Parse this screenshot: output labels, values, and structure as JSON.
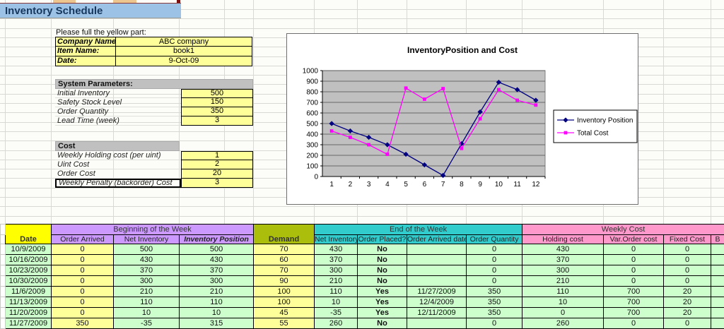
{
  "title": "Inventory Schedule",
  "instructions": "Please full the yellow part:",
  "form": {
    "rows": [
      {
        "label": "Company Name",
        "value": "ABC company"
      },
      {
        "label": "Item Name:",
        "value": "book1"
      },
      {
        "label": "Date:",
        "value": "9-Oct-09"
      }
    ]
  },
  "system_parameters": {
    "header": "System Parameters:",
    "rows": [
      {
        "label": "Initial Inventory",
        "value": "500"
      },
      {
        "label": "Safety Stock Level",
        "value": "150"
      },
      {
        "label": "Order Quantity",
        "value": "350"
      },
      {
        "label": "Lead Time (week)",
        "value": "3"
      }
    ]
  },
  "cost": {
    "header": "Cost",
    "rows": [
      {
        "label": "Weekly Holding cost (per uint)",
        "value": "1"
      },
      {
        "label": "Uint Cost",
        "value": "2"
      },
      {
        "label": "Order Cost",
        "value": "20"
      },
      {
        "label": "Weekly Penalty (backorder) Cost",
        "value": "3",
        "selected": true
      }
    ]
  },
  "chart_data": {
    "type": "line",
    "title": "InventoryPosition and Cost",
    "categories": [
      "1",
      "2",
      "3",
      "4",
      "5",
      "6",
      "7",
      "8",
      "9",
      "10",
      "11",
      "12"
    ],
    "series": [
      {
        "name": "Inventory Position",
        "color": "#000080",
        "marker": "diamond",
        "values": [
          500,
          430,
          370,
          300,
          210,
          110,
          10,
          310,
          610,
          890,
          820,
          720
        ]
      },
      {
        "name": "Total Cost",
        "color": "#FF00FF",
        "marker": "square",
        "values": [
          430,
          370,
          300,
          210,
          835,
          730,
          830,
          265,
          545,
          820,
          720,
          675
        ]
      }
    ],
    "ylim": [
      0,
      1000
    ],
    "ytick_step": 100,
    "grid": "horizontal",
    "legend_position": "right",
    "plot_bg": "#C0C0C0"
  },
  "table": {
    "groups": [
      "Beginning of the Week",
      "End of the Week",
      "Weekly Cost"
    ],
    "columns": [
      "Date",
      "Order Arrived",
      "Net Inventory",
      "Inventory Position",
      "Demand",
      "Net Inventory",
      "Order Placed?",
      "Order Arrived date",
      "Order Quantity",
      "Holding cost",
      "Var.Order cost",
      "Fixed Cost",
      "B"
    ],
    "rows": [
      [
        "10/9/2009",
        "0",
        "500",
        "500",
        "70",
        "430",
        "No",
        "",
        "0",
        "430",
        "0",
        "0",
        ""
      ],
      [
        "10/16/2009",
        "0",
        "430",
        "430",
        "60",
        "370",
        "No",
        "",
        "0",
        "370",
        "0",
        "0",
        ""
      ],
      [
        "10/23/2009",
        "0",
        "370",
        "370",
        "70",
        "300",
        "No",
        "",
        "0",
        "300",
        "0",
        "0",
        ""
      ],
      [
        "10/30/2009",
        "0",
        "300",
        "300",
        "90",
        "210",
        "No",
        "",
        "0",
        "210",
        "0",
        "0",
        ""
      ],
      [
        "11/6/2009",
        "0",
        "210",
        "210",
        "100",
        "110",
        "Yes",
        "11/27/2009",
        "350",
        "110",
        "700",
        "20",
        ""
      ],
      [
        "11/13/2009",
        "0",
        "110",
        "110",
        "100",
        "10",
        "Yes",
        "12/4/2009",
        "350",
        "10",
        "700",
        "20",
        ""
      ],
      [
        "11/20/2009",
        "0",
        "10",
        "10",
        "45",
        "-35",
        "Yes",
        "12/11/2009",
        "350",
        "0",
        "700",
        "20",
        ""
      ],
      [
        "11/27/2009",
        "350",
        "-35",
        "315",
        "55",
        "260",
        "No",
        "",
        "0",
        "260",
        "0",
        "0",
        ""
      ]
    ]
  },
  "colors": {
    "title_bar": "#9CC3E6",
    "yellow_cell": "#FFFF99",
    "section_header": "#C0C0C0",
    "purple_header": "#CC99FF",
    "yellow_header": "#FFFF00",
    "olive_header": "#AABE0B",
    "cyan_header": "#33CCCC",
    "pink_header": "#FF99CC",
    "green_cell": "#CCFFCC",
    "red_text": "#EE3D23"
  }
}
